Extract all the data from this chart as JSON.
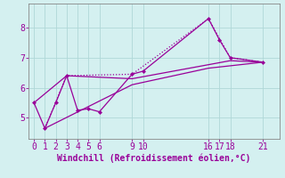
{
  "xlabel": "Windchill (Refroidissement éolien,°C)",
  "bg_color": "#d4f0f0",
  "line_color": "#990099",
  "grid_color": "#c8e8e8",
  "lines": [
    {
      "x": [
        1,
        3,
        9,
        16,
        18,
        21
      ],
      "y": [
        4.65,
        6.4,
        6.45,
        8.3,
        7.0,
        6.85
      ],
      "style": "dotted",
      "marker": null
    },
    {
      "x": [
        0,
        1,
        2,
        3,
        4,
        5,
        6,
        9,
        10,
        16,
        17,
        18,
        21
      ],
      "y": [
        5.5,
        4.65,
        5.5,
        6.4,
        5.25,
        5.3,
        5.2,
        6.45,
        6.55,
        8.3,
        7.6,
        7.0,
        6.85
      ],
      "style": "solid",
      "marker": "D"
    },
    {
      "x": [
        1,
        9,
        16,
        21
      ],
      "y": [
        4.65,
        6.1,
        6.65,
        6.85
      ],
      "style": "solid",
      "marker": null
    },
    {
      "x": [
        0,
        3,
        9,
        18,
        21
      ],
      "y": [
        5.5,
        6.4,
        6.3,
        6.9,
        6.85
      ],
      "style": "solid",
      "marker": null
    }
  ],
  "xticks": [
    0,
    1,
    2,
    3,
    4,
    5,
    6,
    9,
    10,
    16,
    17,
    18,
    21
  ],
  "yticks": [
    5,
    6,
    7,
    8
  ],
  "xlim": [
    -0.5,
    22.5
  ],
  "ylim": [
    4.3,
    8.8
  ],
  "tick_fontsize": 7,
  "xlabel_fontsize": 7
}
